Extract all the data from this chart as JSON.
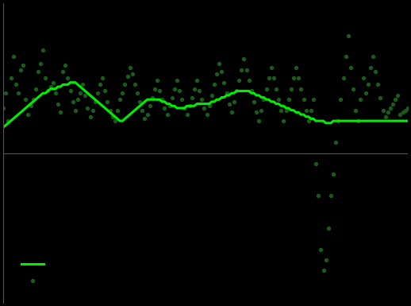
{
  "background_color": "#000000",
  "line_color": "#00ee00",
  "dot_color": "#1a5c1a",
  "ylim": [
    -7,
    7
  ],
  "xlim": [
    0,
    167
  ],
  "zero_line_color": "#555555",
  "line_linewidth": 2.2,
  "negotiated_wages": [
    1.2,
    1.3,
    1.4,
    1.5,
    1.6,
    1.7,
    1.8,
    1.9,
    2.0,
    2.1,
    2.2,
    2.3,
    2.4,
    2.5,
    2.6,
    2.7,
    2.8,
    2.8,
    2.9,
    3.0,
    3.0,
    3.0,
    3.1,
    3.1,
    3.2,
    3.2,
    3.2,
    3.3,
    3.3,
    3.3,
    3.2,
    3.1,
    3.0,
    2.9,
    2.8,
    2.7,
    2.6,
    2.5,
    2.4,
    2.3,
    2.2,
    2.1,
    2.0,
    1.9,
    1.8,
    1.7,
    1.6,
    1.5,
    1.5,
    1.6,
    1.7,
    1.8,
    1.9,
    2.0,
    2.1,
    2.2,
    2.3,
    2.4,
    2.5,
    2.5,
    2.5,
    2.5,
    2.5,
    2.5,
    2.4,
    2.4,
    2.3,
    2.3,
    2.2,
    2.2,
    2.1,
    2.1,
    2.1,
    2.1,
    2.2,
    2.2,
    2.2,
    2.2,
    2.3,
    2.3,
    2.3,
    2.3,
    2.3,
    2.3,
    2.4,
    2.4,
    2.5,
    2.5,
    2.6,
    2.6,
    2.7,
    2.7,
    2.8,
    2.8,
    2.9,
    2.9,
    2.9,
    2.9,
    2.9,
    2.9,
    2.8,
    2.8,
    2.7,
    2.7,
    2.6,
    2.6,
    2.5,
    2.5,
    2.4,
    2.4,
    2.3,
    2.3,
    2.2,
    2.2,
    2.1,
    2.1,
    2.0,
    2.0,
    1.9,
    1.9,
    1.8,
    1.8,
    1.7,
    1.7,
    1.6,
    1.6,
    1.5,
    1.5,
    1.5,
    1.5,
    1.4,
    1.4,
    1.4,
    1.5,
    1.5,
    1.5,
    1.5,
    1.5,
    1.5,
    1.5,
    1.5,
    1.5,
    1.5,
    1.5,
    1.5,
    1.5,
    1.5,
    1.5,
    1.5,
    1.5,
    1.5,
    1.5,
    1.5,
    1.5,
    1.5,
    1.5,
    1.5,
    1.5,
    1.5,
    1.5,
    1.5,
    1.5,
    1.5,
    1.5
  ],
  "hourly_wages": [
    2.1,
    2.8,
    1.5,
    3.5,
    4.5,
    3.2,
    2.8,
    3.9,
    4.1,
    2.5,
    1.8,
    2.2,
    2.5,
    3.0,
    3.8,
    4.2,
    4.8,
    3.5,
    2.9,
    3.1,
    3.3,
    2.8,
    2.3,
    1.9,
    3.8,
    4.1,
    3.5,
    2.9,
    2.4,
    2.0,
    2.5,
    2.8,
    3.2,
    2.7,
    2.1,
    1.7,
    2.0,
    2.4,
    2.8,
    3.2,
    3.5,
    2.9,
    2.4,
    2.0,
    1.7,
    1.5,
    2.0,
    2.5,
    2.8,
    3.2,
    3.6,
    4.0,
    3.7,
    3.2,
    2.8,
    2.4,
    2.0,
    1.6,
    1.8,
    2.2,
    2.6,
    3.0,
    3.4,
    2.9,
    2.5,
    2.1,
    1.8,
    2.2,
    2.6,
    3.0,
    3.4,
    2.9,
    2.5,
    2.1,
    1.8,
    2.2,
    2.6,
    3.0,
    3.4,
    2.9,
    2.5,
    2.1,
    1.8,
    2.2,
    2.7,
    3.2,
    3.7,
    4.2,
    3.8,
    3.3,
    2.8,
    2.3,
    1.9,
    2.4,
    2.9,
    3.4,
    3.9,
    4.4,
    3.9,
    3.4,
    2.9,
    2.4,
    1.9,
    1.5,
    2.0,
    2.5,
    3.0,
    3.5,
    4.0,
    3.5,
    3.0,
    2.5,
    2.0,
    1.5,
    2.0,
    2.5,
    3.0,
    3.5,
    4.0,
    3.5,
    3.0,
    2.5,
    2.0,
    1.5,
    2.0,
    2.5,
    -0.5,
    -2.0,
    -4.5,
    -5.5,
    -5.0,
    -3.5,
    -2.0,
    -1.0,
    0.5,
    1.5,
    2.5,
    3.5,
    4.5,
    5.5,
    4.0,
    3.0,
    2.0,
    1.5,
    2.5,
    3.5,
    2.8,
    3.2,
    4.0,
    4.5,
    3.8,
    3.2,
    2.6,
    2.0,
    1.7,
    1.9,
    2.1,
    2.3,
    2.5,
    2.7,
    1.8,
    1.9,
    2.0,
    2.1
  ]
}
